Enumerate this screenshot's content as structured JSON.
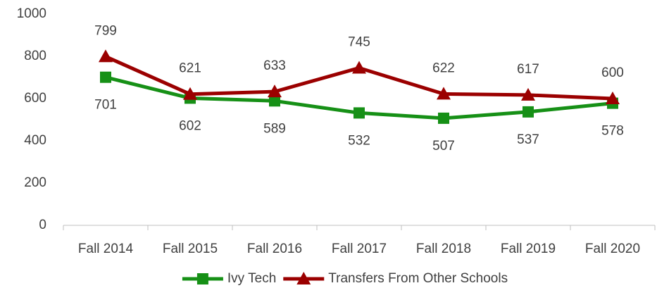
{
  "chart_data": {
    "type": "line",
    "categories": [
      "Fall 2014",
      "Fall 2015",
      "Fall 2016",
      "Fall 2017",
      "Fall 2018",
      "Fall 2019",
      "Fall 2020"
    ],
    "series": [
      {
        "name": "Ivy Tech",
        "color": "#169016",
        "marker": "square",
        "values": [
          701,
          602,
          589,
          532,
          507,
          537,
          578
        ]
      },
      {
        "name": "Transfers From Other Schools",
        "color": "#9b0000",
        "marker": "triangle",
        "values": [
          799,
          621,
          633,
          745,
          622,
          617,
          600
        ]
      }
    ],
    "ylim": [
      0,
      1000
    ],
    "yticks": [
      0,
      200,
      400,
      600,
      800,
      1000
    ],
    "grid": false,
    "legend": "bottom"
  }
}
